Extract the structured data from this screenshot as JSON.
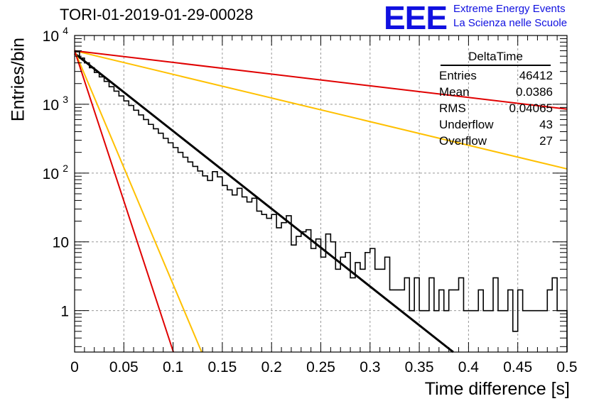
{
  "header": {
    "title": "TORI-01-2019-01-29-00028",
    "logo": "EEE",
    "brand_line1": "Extreme Energy Events",
    "brand_line2": "La Scienza nelle Scuole",
    "logo_color": "#1010e0"
  },
  "stats": {
    "title": "DeltaTime",
    "rows": [
      {
        "label": "Entries",
        "value": "46412"
      },
      {
        "label": "Mean",
        "value": "0.0386"
      },
      {
        "label": "RMS",
        "value": "0.04065"
      },
      {
        "label": "Underflow",
        "value": "43"
      },
      {
        "label": "Overflow",
        "value": "27"
      }
    ]
  },
  "chart_data": {
    "type": "line",
    "xlabel": "Time difference [s]",
    "ylabel": "Entries/bin",
    "xlim": [
      0,
      0.5
    ],
    "ylim": [
      0.25,
      10000
    ],
    "yscale": "log",
    "grid": true,
    "x_ticks": [
      "0",
      "0.05",
      "0.1",
      "0.15",
      "0.2",
      "0.25",
      "0.3",
      "0.35",
      "0.4",
      "0.45",
      "0.5"
    ],
    "y_ticks": [
      {
        "value": 1,
        "label": "1"
      },
      {
        "value": 10,
        "label": "10"
      },
      {
        "value": 100,
        "label": "10",
        "exp": "2"
      },
      {
        "value": 1000,
        "label": "10",
        "exp": "3"
      },
      {
        "value": 10000,
        "label": "10",
        "exp": "4"
      }
    ],
    "histogram": {
      "color": "#000000",
      "bin_width": 0.005,
      "counts": [
        5800,
        4700,
        4000,
        3400,
        2900,
        2500,
        2150,
        1800,
        1550,
        1320,
        1120,
        960,
        820,
        700,
        600,
        510,
        440,
        380,
        320,
        275,
        235,
        200,
        170,
        145,
        125,
        107,
        91,
        78,
        105,
        88,
        66,
        57,
        48,
        60,
        45,
        38,
        43,
        28,
        25,
        22,
        25,
        16,
        19,
        24,
        9,
        12,
        14,
        15,
        8,
        11,
        6,
        13,
        10,
        4,
        6,
        7,
        3,
        5,
        4,
        7,
        8,
        4,
        4,
        6,
        2,
        2,
        2,
        3,
        1,
        3,
        1,
        1,
        3,
        1,
        2,
        1,
        2,
        2,
        3,
        1,
        1,
        1,
        2,
        1,
        1,
        3,
        1,
        1,
        2,
        0.5,
        2,
        1,
        1,
        1,
        1,
        1,
        2,
        3,
        1,
        1
      ]
    },
    "series": [
      {
        "color": "#000000",
        "x": [
          0,
          0.3845
        ],
        "y": [
          5500,
          0.25
        ]
      },
      {
        "color": "#ffc000",
        "x": [
          0,
          0.5
        ],
        "y": [
          6000,
          115
        ]
      },
      {
        "color": "#ffc000",
        "x": [
          0,
          0.129
        ],
        "y": [
          6000,
          0.25
        ]
      },
      {
        "color": "#e00000",
        "x": [
          0,
          0.5
        ],
        "y": [
          6000,
          850
        ]
      },
      {
        "color": "#e00000",
        "x": [
          0,
          0.1003
        ],
        "y": [
          6000,
          0.25
        ]
      }
    ]
  }
}
